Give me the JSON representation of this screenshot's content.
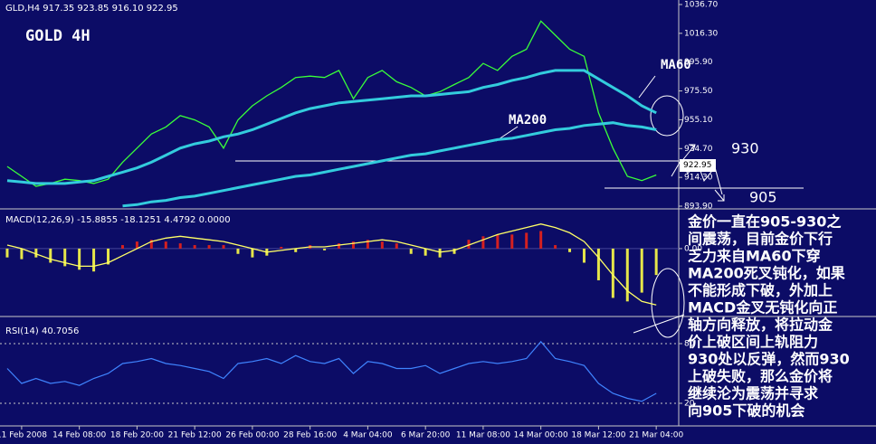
{
  "chart_data": [
    {
      "type": "line",
      "title": "GOLD 4H",
      "subtitle": "GLD,H4  917.35 923.85 916.10 922.95",
      "categories": [
        null,
        "11 Feb 2008",
        null,
        null,
        null,
        "14 Feb 08:00",
        null,
        null,
        null,
        "18 Feb 20:00",
        null,
        null,
        null,
        "21 Feb 12:00",
        null,
        null,
        null,
        "26 Feb 00:00",
        null,
        null,
        null,
        "28 Feb 16:00",
        null,
        null,
        null,
        "4 Mar 04:00",
        null,
        null,
        null,
        "6 Mar 20:00",
        null,
        null,
        null,
        "11 Mar 08:00",
        null,
        null,
        null,
        "14 Mar 00:00",
        null,
        null,
        null,
        "18 Mar 12:00",
        null,
        null,
        null,
        "21 Mar 04:00",
        null,
        null
      ],
      "series": [
        {
          "color": "#39ff39",
          "values": [
            922,
            915,
            908,
            910,
            913,
            912,
            910,
            913,
            925,
            935,
            945,
            950,
            958,
            955,
            950,
            935,
            955,
            965,
            972,
            978,
            985,
            986,
            985,
            990,
            970,
            985,
            990,
            982,
            978,
            972,
            975,
            980,
            985,
            995,
            990,
            1000,
            1005,
            1025,
            1015,
            1005,
            1000,
            960,
            935,
            915,
            912,
            916,
            null,
            null
          ]
        },
        {
          "name": "MA60",
          "color": "#33ccdd",
          "values": [
            912,
            911,
            910,
            910,
            910,
            911,
            912,
            915,
            918,
            921,
            925,
            930,
            935,
            938,
            940,
            943,
            945,
            948,
            952,
            956,
            960,
            963,
            965,
            967,
            968,
            969,
            970,
            971,
            972,
            972,
            973,
            974,
            975,
            978,
            980,
            983,
            985,
            988,
            990,
            990,
            990,
            984,
            978,
            972,
            965,
            960,
            null,
            null
          ]
        },
        {
          "name": "MA200",
          "color": "#33ccdd",
          "values": [
            null,
            null,
            null,
            null,
            null,
            null,
            null,
            null,
            894,
            895,
            897,
            898,
            900,
            901,
            903,
            905,
            907,
            909,
            911,
            913,
            915,
            916,
            918,
            920,
            922,
            924,
            926,
            928,
            930,
            931,
            933,
            935,
            937,
            939,
            941,
            942,
            944,
            946,
            948,
            949,
            951,
            952,
            953,
            951,
            950,
            948,
            null,
            null
          ]
        }
      ],
      "ylim": [
        893.9,
        1036.7
      ],
      "yticks": [
        {
          "value": 1036.7,
          "label": "1036.70"
        },
        {
          "value": 1016.3,
          "label": "1016.30"
        },
        {
          "value": 995.9,
          "label": "995.90"
        },
        {
          "value": 975.5,
          "label": "975.50"
        },
        {
          "value": 955.1,
          "label": "955.10"
        },
        {
          "value": 934.7,
          "label": "934.70"
        },
        {
          "value": 914.3,
          "label": "914.30"
        },
        {
          "value": 893.9,
          "label": "893.90"
        }
      ],
      "current_price": 922.95,
      "annotations": [
        "930",
        "905"
      ],
      "note_lines": [
        "金价一直在905-930之",
        "间震荡，目前金价下行",
        "乏力来自MA60下穿",
        "MA200死叉钝化，如果",
        "不能形成下破，外加上",
        "MACD金叉无钝化向正",
        "轴方向释放，将拉动金",
        "价上破区间上轨阻力",
        "930处以反弹，然而930",
        "上破失败，那么金价将",
        "继续沦为震荡并寻求",
        "向905下破的机会"
      ]
    },
    {
      "type": "macd",
      "title": "MACD(12,26,9) -15.8855 -18.1251 4.4792 0.0000",
      "values": [
        -5,
        -6,
        -5,
        -8,
        -10,
        -12,
        -13,
        -9,
        2,
        4,
        5,
        4,
        3,
        2,
        2,
        2,
        -3,
        -5,
        -4,
        1,
        -2,
        2,
        -1,
        3,
        4,
        5,
        4,
        3,
        -3,
        -4,
        -5,
        -3,
        5,
        7,
        8,
        8,
        9,
        10,
        2,
        -2,
        -8,
        -18,
        -28,
        -30,
        -25,
        -15,
        null,
        null
      ],
      "signal": [
        2,
        0,
        -3,
        -6,
        -8,
        -10,
        -10,
        -8,
        -4,
        0,
        4,
        6,
        7,
        6,
        5,
        4,
        2,
        0,
        -2,
        -1,
        0,
        1,
        1,
        2,
        3,
        4,
        5,
        4,
        2,
        0,
        -2,
        -1,
        2,
        5,
        8,
        10,
        12,
        14,
        12,
        9,
        4,
        -5,
        -15,
        -24,
        -30,
        -32,
        null,
        null
      ],
      "colors": {
        "up": "#d42020",
        "down": "#e6e64a",
        "signal": "#ffff66"
      },
      "ylim": [
        -36,
        20
      ],
      "yticks": [
        {
          "value": 0,
          "label": "0.00"
        }
      ]
    },
    {
      "type": "rsi",
      "title": "RSI(14) 40.7056",
      "color": "#3f84ff",
      "values": [
        55,
        40,
        45,
        40,
        42,
        38,
        45,
        50,
        60,
        62,
        65,
        60,
        58,
        55,
        52,
        45,
        60,
        62,
        65,
        60,
        68,
        62,
        60,
        65,
        50,
        62,
        60,
        55,
        55,
        58,
        50,
        55,
        60,
        62,
        60,
        62,
        65,
        82,
        65,
        62,
        58,
        40,
        30,
        25,
        22,
        30,
        null,
        null
      ],
      "ylim": [
        0,
        100
      ],
      "yticks": [
        20,
        80
      ],
      "grid": true
    }
  ]
}
